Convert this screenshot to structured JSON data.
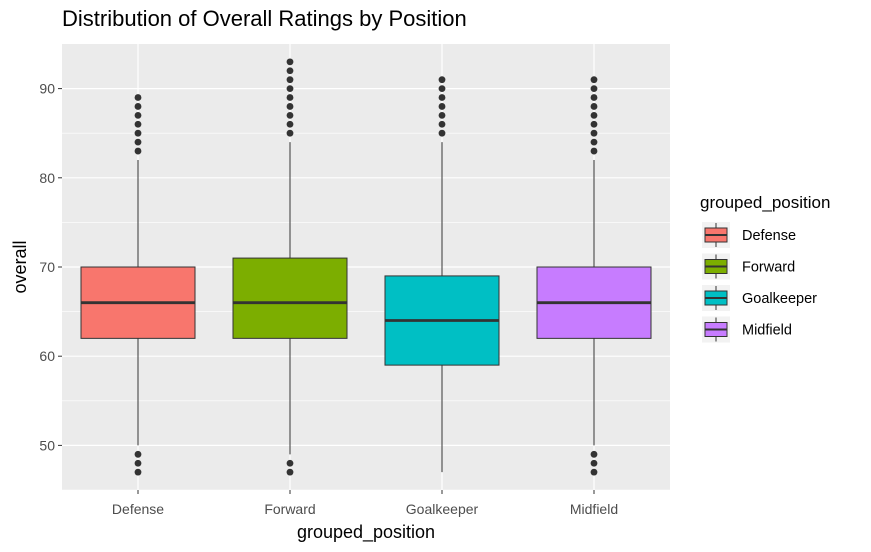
{
  "chart_data": {
    "type": "box",
    "title": "Distribution of Overall Ratings by Position",
    "xlabel": "grouped_position",
    "ylabel": "overall",
    "ylim": [
      45,
      95
    ],
    "yticks": [
      50,
      60,
      70,
      80,
      90
    ],
    "categories": [
      "Defense",
      "Forward",
      "Goalkeeper",
      "Midfield"
    ],
    "boxes": [
      {
        "name": "Defense",
        "color": "#F8766D",
        "whisker_low": 50,
        "q1": 62,
        "median": 66,
        "q3": 70,
        "whisker_high": 82,
        "outliers": [
          47,
          48,
          49,
          83,
          84,
          85,
          86,
          87,
          88,
          89
        ]
      },
      {
        "name": "Forward",
        "color": "#7CAE00",
        "whisker_low": 49,
        "q1": 62,
        "median": 66,
        "q3": 71,
        "whisker_high": 84,
        "outliers": [
          47,
          48,
          85,
          86,
          87,
          88,
          89,
          90,
          91,
          92,
          93
        ]
      },
      {
        "name": "Goalkeeper",
        "color": "#00BFC4",
        "whisker_low": 47,
        "q1": 59,
        "median": 64,
        "q3": 69,
        "whisker_high": 84,
        "outliers": [
          85,
          86,
          87,
          88,
          89,
          90,
          91
        ]
      },
      {
        "name": "Midfield",
        "color": "#C77CFF",
        "whisker_low": 50,
        "q1": 62,
        "median": 66,
        "q3": 70,
        "whisker_high": 82,
        "outliers": [
          47,
          48,
          49,
          83,
          84,
          85,
          86,
          87,
          88,
          89,
          90,
          91
        ]
      }
    ],
    "legend": {
      "title": "grouped_position",
      "placement": "right",
      "items": [
        "Defense",
        "Forward",
        "Goalkeeper",
        "Midfield"
      ]
    },
    "panel_background": "#EBEBEB",
    "grid": true
  }
}
